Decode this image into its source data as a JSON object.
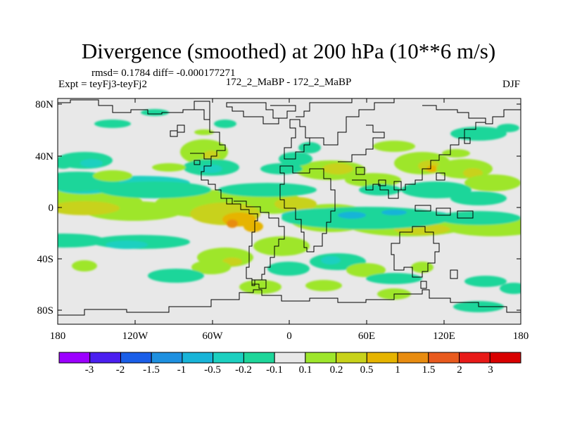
{
  "chart_data": {
    "type": "heatmap",
    "title": "Divergence (smoothed) at 200 hPa (10**6 m/s)",
    "stats_line": "rmsd= 0.1784 diff= -0.000177271",
    "experiment": "Expt = teyFj3-teyFj2",
    "case_label": "172_2_MaBP - 172_2_MaBP",
    "season": "DJF",
    "x_ticks": [
      "180",
      "120W",
      "60W",
      "0",
      "60E",
      "120E",
      "180"
    ],
    "x_tick_values": [
      -180,
      -120,
      -60,
      0,
      60,
      120,
      180
    ],
    "y_ticks": [
      "80N",
      "40N",
      "0",
      "40S",
      "80S"
    ],
    "y_tick_values": [
      80,
      40,
      0,
      -40,
      -80
    ],
    "xlim": [
      -180,
      180
    ],
    "ylim": [
      -90,
      90
    ],
    "colorbar": {
      "labels": [
        "-3",
        "-2",
        "-1.5",
        "-1",
        "-0.5",
        "-0.2",
        "-0.1",
        "0.1",
        "0.2",
        "0.5",
        "1",
        "1.5",
        "2",
        "3"
      ],
      "colors": [
        "#9c00ff",
        "#4b1ff0",
        "#1a5ee8",
        "#1e90e0",
        "#18b4d8",
        "#1cd0c0",
        "#1ed69a",
        "#e8e8e8",
        "#9ee62c",
        "#c8d21a",
        "#e6b400",
        "#e88c10",
        "#e85a1e",
        "#e81a18",
        "#d80000"
      ]
    }
  }
}
